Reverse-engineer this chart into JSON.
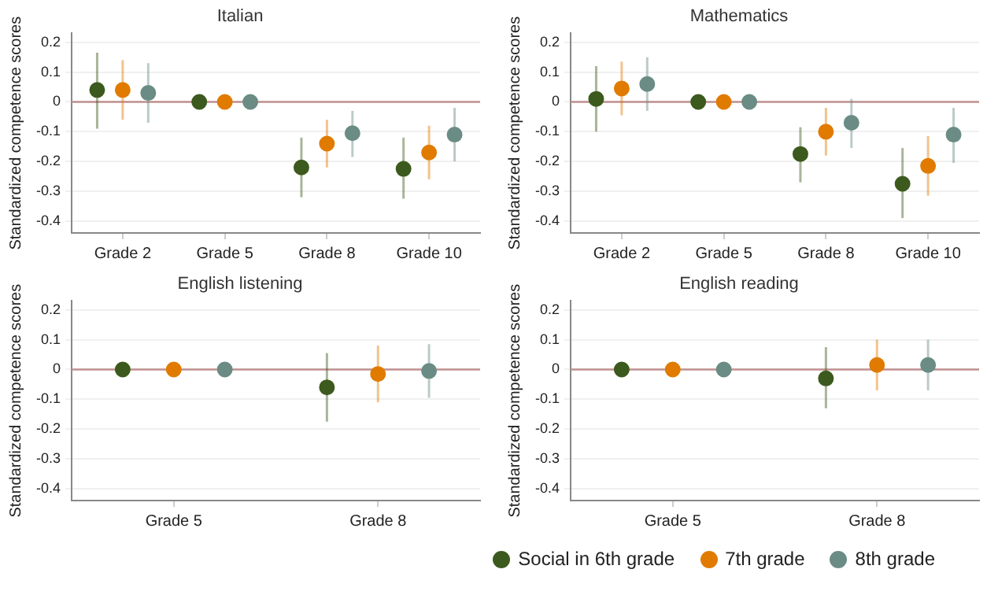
{
  "chart_data": [
    {
      "type": "scatter",
      "title": "Italian",
      "ylabel": "Standardized competence scores",
      "categories": [
        "Grade 2",
        "Grade 5",
        "Grade 8",
        "Grade 10"
      ],
      "ylim": [
        -0.44,
        0.23
      ],
      "yticks": [
        0.2,
        0.1,
        0,
        -0.1,
        -0.2,
        -0.3,
        -0.4
      ],
      "grid": "y",
      "marker": "circle",
      "ref_lines": [
        {
          "axis": "y",
          "value": 0,
          "color": "#c09090"
        }
      ],
      "series": [
        {
          "color": "#3d5a1e",
          "values": [
            0.04,
            0,
            -0.22,
            -0.225
          ],
          "errors": [
            [
              -0.09,
              0.165
            ],
            null,
            [
              -0.32,
              -0.12
            ],
            [
              -0.325,
              -0.12
            ]
          ]
        },
        {
          "color": "#e07b00",
          "values": [
            0.04,
            0,
            -0.14,
            -0.17
          ],
          "errors": [
            [
              -0.06,
              0.14
            ],
            null,
            [
              -0.22,
              -0.06
            ],
            [
              -0.26,
              -0.08
            ]
          ]
        },
        {
          "color": "#6a8c84",
          "values": [
            0.03,
            0,
            -0.105,
            -0.11
          ],
          "errors": [
            [
              -0.07,
              0.13
            ],
            null,
            [
              -0.185,
              -0.03
            ],
            [
              -0.2,
              -0.02
            ]
          ]
        }
      ]
    },
    {
      "type": "scatter",
      "title": "Mathematics",
      "ylabel": "Standardized competence scores",
      "categories": [
        "Grade 2",
        "Grade 5",
        "Grade 8",
        "Grade 10"
      ],
      "ylim": [
        -0.44,
        0.23
      ],
      "yticks": [
        0.2,
        0.1,
        0,
        -0.1,
        -0.2,
        -0.3,
        -0.4
      ],
      "grid": "y",
      "marker": "circle",
      "ref_lines": [
        {
          "axis": "y",
          "value": 0,
          "color": "#c09090"
        }
      ],
      "series": [
        {
          "color": "#3d5a1e",
          "values": [
            0.01,
            0,
            -0.175,
            -0.275
          ],
          "errors": [
            [
              -0.1,
              0.12
            ],
            null,
            [
              -0.27,
              -0.085
            ],
            [
              -0.39,
              -0.155
            ]
          ]
        },
        {
          "color": "#e07b00",
          "values": [
            0.045,
            0,
            -0.1,
            -0.215
          ],
          "errors": [
            [
              -0.045,
              0.135
            ],
            null,
            [
              -0.18,
              -0.02
            ],
            [
              -0.315,
              -0.115
            ]
          ]
        },
        {
          "color": "#6a8c84",
          "values": [
            0.06,
            0,
            -0.07,
            -0.11
          ],
          "errors": [
            [
              -0.03,
              0.15
            ],
            null,
            [
              -0.155,
              0.01
            ],
            [
              -0.205,
              -0.02
            ]
          ]
        }
      ]
    },
    {
      "type": "scatter",
      "title": "English listening",
      "ylabel": "Standardized competence scores",
      "categories": [
        "Grade 5",
        "Grade 8"
      ],
      "ylim": [
        -0.44,
        0.23
      ],
      "yticks": [
        0.2,
        0.1,
        0,
        -0.1,
        -0.2,
        -0.3,
        -0.4
      ],
      "grid": "y",
      "marker": "circle",
      "ref_lines": [
        {
          "axis": "y",
          "value": 0,
          "color": "#c09090"
        }
      ],
      "series": [
        {
          "color": "#3d5a1e",
          "values": [
            0,
            -0.06
          ],
          "errors": [
            null,
            [
              -0.175,
              0.055
            ]
          ]
        },
        {
          "color": "#e07b00",
          "values": [
            0,
            -0.015
          ],
          "errors": [
            null,
            [
              -0.11,
              0.08
            ]
          ]
        },
        {
          "color": "#6a8c84",
          "values": [
            0,
            -0.005
          ],
          "errors": [
            null,
            [
              -0.095,
              0.085
            ]
          ]
        }
      ]
    },
    {
      "type": "scatter",
      "title": "English reading",
      "ylabel": "Standardized competence scores",
      "categories": [
        "Grade 5",
        "Grade 8"
      ],
      "ylim": [
        -0.44,
        0.23
      ],
      "yticks": [
        0.2,
        0.1,
        0,
        -0.1,
        -0.2,
        -0.3,
        -0.4
      ],
      "grid": "y",
      "marker": "circle",
      "legend": "bottom",
      "ref_lines": [
        {
          "axis": "y",
          "value": 0,
          "color": "#c09090"
        }
      ],
      "series": [
        {
          "name": "Social in 6th grade",
          "color": "#3d5a1e",
          "values": [
            0,
            -0.03
          ],
          "errors": [
            null,
            [
              -0.13,
              0.075
            ]
          ]
        },
        {
          "name": "7th grade",
          "color": "#e07b00",
          "values": [
            0,
            0.015
          ],
          "errors": [
            null,
            [
              -0.07,
              0.1
            ]
          ]
        },
        {
          "name": "8th grade",
          "color": "#6a8c84",
          "values": [
            0,
            0.015
          ],
          "errors": [
            null,
            [
              -0.07,
              0.1
            ]
          ]
        }
      ]
    }
  ]
}
